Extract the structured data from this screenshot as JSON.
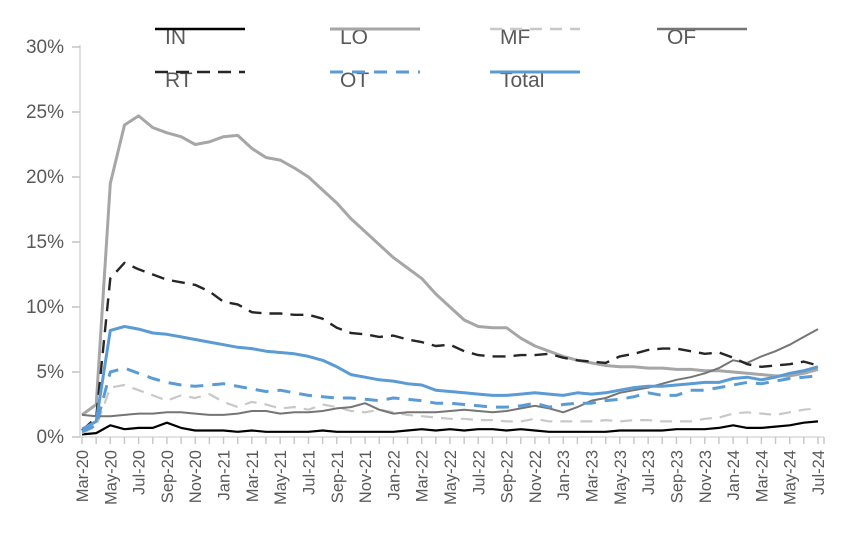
{
  "chart_data": {
    "type": "line",
    "title": "",
    "xlabel": "",
    "ylabel": "",
    "ylim": [
      0,
      30
    ],
    "ytick_step": 5,
    "y_tick_labels": [
      "0%",
      "5%",
      "10%",
      "15%",
      "20%",
      "25%",
      "30%"
    ],
    "grid": false,
    "legend_position": "top",
    "legend_rows": [
      [
        "IN",
        "LO",
        "MF",
        "OF"
      ],
      [
        "RT",
        "OT",
        "Total"
      ]
    ],
    "x_tick_every": 2,
    "x": [
      "Mar-20",
      "Apr-20",
      "May-20",
      "Jun-20",
      "Jul-20",
      "Aug-20",
      "Sep-20",
      "Oct-20",
      "Nov-20",
      "Dec-20",
      "Jan-21",
      "Feb-21",
      "Mar-21",
      "Apr-21",
      "May-21",
      "Jun-21",
      "Jul-21",
      "Aug-21",
      "Sep-21",
      "Oct-21",
      "Nov-21",
      "Dec-21",
      "Jan-22",
      "Feb-22",
      "Mar-22",
      "Apr-22",
      "May-22",
      "Jun-22",
      "Jul-22",
      "Aug-22",
      "Sep-22",
      "Oct-22",
      "Nov-22",
      "Dec-22",
      "Jan-23",
      "Feb-23",
      "Mar-23",
      "Apr-23",
      "May-23",
      "Jun-23",
      "Jul-23",
      "Aug-23",
      "Sep-23",
      "Oct-23",
      "Nov-23",
      "Dec-23",
      "Jan-24",
      "Feb-24",
      "Mar-24",
      "Apr-24",
      "May-24",
      "Jun-24",
      "Jul-24"
    ],
    "series": [
      {
        "name": "IN",
        "color": "#000000",
        "dash": "solid",
        "width": 2.2,
        "values": [
          0.2,
          0.3,
          0.9,
          0.6,
          0.7,
          0.7,
          1.1,
          0.7,
          0.5,
          0.5,
          0.5,
          0.4,
          0.5,
          0.4,
          0.4,
          0.4,
          0.4,
          0.5,
          0.4,
          0.4,
          0.4,
          0.4,
          0.4,
          0.5,
          0.6,
          0.5,
          0.6,
          0.5,
          0.6,
          0.6,
          0.5,
          0.6,
          0.5,
          0.4,
          0.4,
          0.4,
          0.4,
          0.4,
          0.5,
          0.5,
          0.5,
          0.5,
          0.6,
          0.6,
          0.6,
          0.7,
          0.9,
          0.7,
          0.7,
          0.8,
          0.9,
          1.1,
          1.2
        ]
      },
      {
        "name": "LO",
        "color": "#a6a6a6",
        "dash": "solid",
        "width": 3,
        "values": [
          1.7,
          2.5,
          19.5,
          24.0,
          24.7,
          23.8,
          23.4,
          23.1,
          22.5,
          22.7,
          23.1,
          23.2,
          22.2,
          21.5,
          21.3,
          20.7,
          20.0,
          19.0,
          18.0,
          16.8,
          15.8,
          14.8,
          13.8,
          13.0,
          12.2,
          11.0,
          10.0,
          9.0,
          8.5,
          8.4,
          8.4,
          7.6,
          7.0,
          6.6,
          6.2,
          5.9,
          5.7,
          5.5,
          5.4,
          5.4,
          5.3,
          5.3,
          5.2,
          5.2,
          5.1,
          5.1,
          5.0,
          4.9,
          4.8,
          4.7,
          4.7,
          4.9,
          5.2
        ]
      },
      {
        "name": "MF",
        "color": "#c8c8c8",
        "dash": "dashed",
        "width": 2.2,
        "values": [
          0.3,
          0.8,
          3.8,
          4.0,
          3.6,
          3.2,
          2.8,
          3.2,
          3.0,
          3.3,
          2.7,
          2.3,
          2.7,
          2.5,
          2.2,
          2.3,
          2.1,
          2.5,
          2.3,
          2.0,
          1.9,
          2.1,
          1.9,
          1.7,
          1.6,
          1.5,
          1.4,
          1.4,
          1.3,
          1.3,
          1.2,
          1.2,
          1.4,
          1.2,
          1.2,
          1.2,
          1.2,
          1.3,
          1.2,
          1.3,
          1.3,
          1.2,
          1.2,
          1.2,
          1.4,
          1.5,
          1.8,
          1.9,
          1.8,
          1.7,
          1.9,
          2.1,
          2.2
        ]
      },
      {
        "name": "OF",
        "color": "#757575",
        "dash": "solid",
        "width": 2,
        "values": [
          1.7,
          1.6,
          1.6,
          1.7,
          1.8,
          1.8,
          1.9,
          1.9,
          1.8,
          1.7,
          1.7,
          1.8,
          2.0,
          2.0,
          1.8,
          1.9,
          1.9,
          2.0,
          2.2,
          2.3,
          2.6,
          2.1,
          1.8,
          1.9,
          1.9,
          1.9,
          2.0,
          2.1,
          2.0,
          1.9,
          2.0,
          2.2,
          2.4,
          2.2,
          1.9,
          2.3,
          2.8,
          3.0,
          3.4,
          3.6,
          3.8,
          4.1,
          4.4,
          4.6,
          4.9,
          5.3,
          5.9,
          5.7,
          6.2,
          6.6,
          7.1,
          7.7,
          8.3
        ]
      },
      {
        "name": "RT",
        "color": "#262626",
        "dash": "dashed",
        "width": 2.4,
        "values": [
          0.5,
          1.5,
          12.2,
          13.4,
          12.9,
          12.5,
          12.1,
          11.9,
          11.7,
          11.2,
          10.4,
          10.2,
          9.6,
          9.5,
          9.5,
          9.4,
          9.4,
          9.1,
          8.4,
          8.0,
          7.9,
          7.7,
          7.8,
          7.5,
          7.3,
          7.0,
          7.1,
          6.6,
          6.3,
          6.2,
          6.2,
          6.3,
          6.3,
          6.4,
          6.1,
          5.9,
          5.8,
          5.7,
          6.2,
          6.4,
          6.7,
          6.8,
          6.8,
          6.6,
          6.4,
          6.5,
          6.1,
          5.6,
          5.4,
          5.5,
          5.6,
          5.8,
          5.5
        ]
      },
      {
        "name": "OT",
        "color": "#5b9bd5",
        "dash": "dashed",
        "width": 3,
        "values": [
          0.4,
          0.9,
          5.0,
          5.3,
          4.9,
          4.5,
          4.2,
          4.0,
          3.9,
          4.0,
          4.1,
          3.9,
          3.7,
          3.5,
          3.6,
          3.4,
          3.2,
          3.1,
          3.0,
          3.0,
          2.9,
          2.8,
          3.0,
          2.9,
          2.8,
          2.6,
          2.6,
          2.5,
          2.4,
          2.3,
          2.3,
          2.4,
          2.6,
          2.3,
          2.5,
          2.6,
          2.6,
          2.8,
          2.9,
          3.1,
          3.4,
          3.2,
          3.2,
          3.6,
          3.6,
          3.8,
          4.0,
          4.2,
          4.1,
          4.3,
          4.5,
          4.6,
          4.7
        ]
      },
      {
        "name": "Total",
        "color": "#5b9bd5",
        "dash": "solid",
        "width": 3,
        "values": [
          0.6,
          1.2,
          8.2,
          8.5,
          8.3,
          8.0,
          7.9,
          7.7,
          7.5,
          7.3,
          7.1,
          6.9,
          6.8,
          6.6,
          6.5,
          6.4,
          6.2,
          5.9,
          5.4,
          4.8,
          4.6,
          4.4,
          4.3,
          4.1,
          4.0,
          3.6,
          3.5,
          3.4,
          3.3,
          3.2,
          3.2,
          3.3,
          3.4,
          3.3,
          3.2,
          3.4,
          3.3,
          3.4,
          3.6,
          3.8,
          3.9,
          3.9,
          4.0,
          4.1,
          4.2,
          4.2,
          4.5,
          4.6,
          4.4,
          4.6,
          4.9,
          5.1,
          5.4
        ]
      }
    ],
    "axis_color": "#d9d9d9",
    "tick_color": "#c6c6c6",
    "label_color": "#595959"
  }
}
